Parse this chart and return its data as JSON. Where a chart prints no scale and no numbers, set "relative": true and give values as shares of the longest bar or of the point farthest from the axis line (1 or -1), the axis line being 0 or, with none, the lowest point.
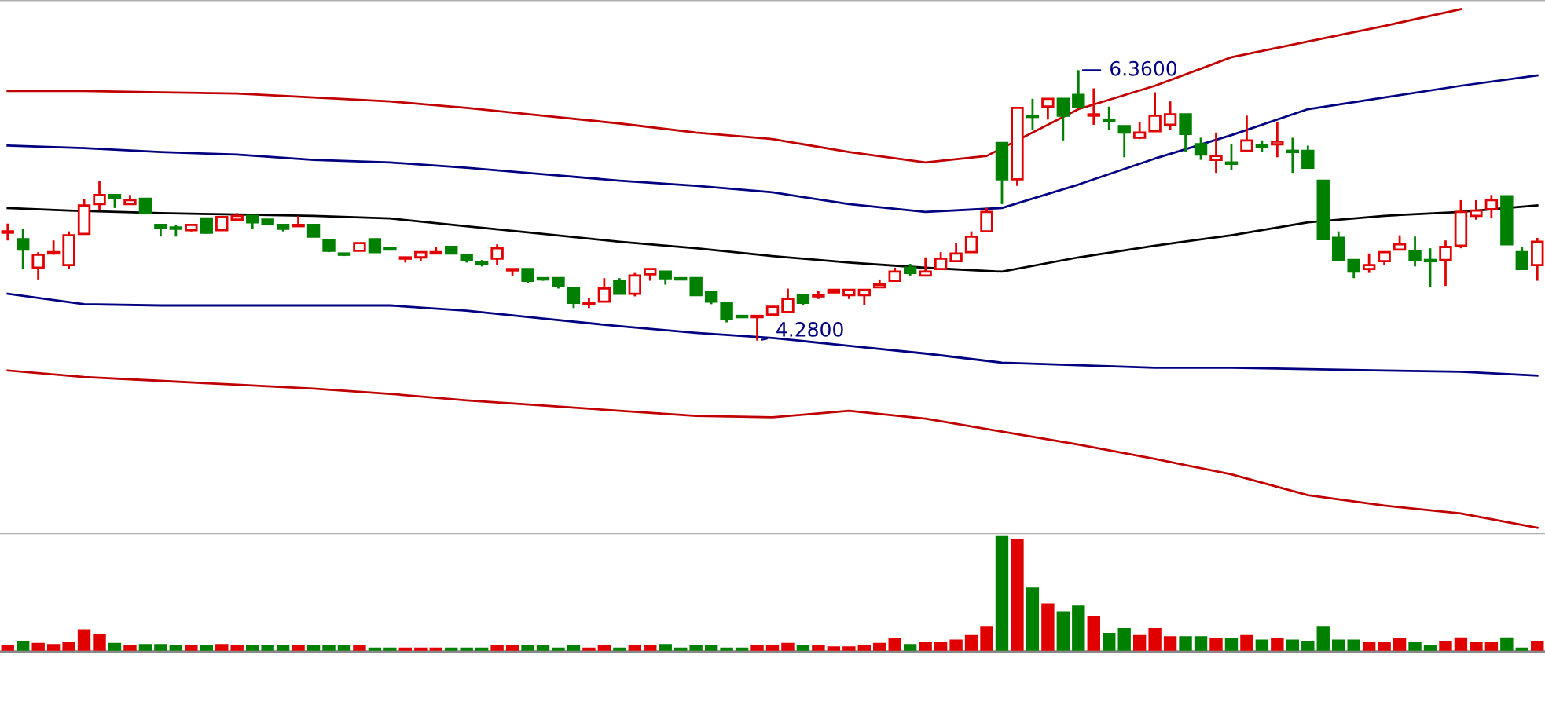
{
  "chart_data": [
    {
      "type": "candlestick",
      "categories": [
        null,
        null,
        null,
        null,
        null,
        null,
        null,
        null,
        null,
        null,
        null,
        null,
        null,
        null,
        null,
        null,
        null,
        null,
        null,
        null,
        null,
        null,
        null,
        null,
        null,
        null,
        null,
        null,
        null,
        null,
        null,
        null,
        null,
        null,
        null,
        null,
        null,
        null,
        null,
        null,
        null,
        null,
        null,
        null,
        null,
        null,
        null,
        null,
        null,
        null,
        null,
        null,
        null,
        null,
        null,
        null,
        null,
        null,
        null,
        null,
        null,
        null,
        null,
        null,
        null,
        null,
        null,
        null,
        null,
        null,
        null,
        null,
        null,
        null,
        null,
        null,
        null,
        null,
        null,
        null,
        null,
        null,
        null,
        null,
        null,
        null,
        null,
        null,
        null,
        null,
        null,
        null,
        null,
        null,
        null,
        null,
        null,
        null,
        null,
        null,
        null
      ],
      "ohlc": [
        [
          5.11,
          5.18,
          5.05,
          5.12
        ],
        [
          5.06,
          5.14,
          4.83,
          4.98
        ],
        [
          4.84,
          4.96,
          4.75,
          4.94
        ],
        [
          4.95,
          5.05,
          4.94,
          4.96
        ],
        [
          4.86,
          5.12,
          4.83,
          5.09
        ],
        [
          5.1,
          5.37,
          5.1,
          5.32
        ],
        [
          5.33,
          5.51,
          5.28,
          5.4
        ],
        [
          5.4,
          5.4,
          5.3,
          5.38
        ],
        [
          5.33,
          5.4,
          5.33,
          5.36
        ],
        [
          5.37,
          5.37,
          5.25,
          5.26
        ],
        [
          5.17,
          5.17,
          5.08,
          5.15
        ],
        [
          5.15,
          5.17,
          5.08,
          5.14
        ],
        [
          5.13,
          5.17,
          5.12,
          5.17
        ],
        [
          5.22,
          5.22,
          5.1,
          5.11
        ],
        [
          5.13,
          5.23,
          5.13,
          5.23
        ],
        [
          5.21,
          5.26,
          5.21,
          5.24
        ],
        [
          5.24,
          5.24,
          5.14,
          5.19
        ],
        [
          5.21,
          5.21,
          5.17,
          5.18
        ],
        [
          5.17,
          5.17,
          5.12,
          5.14
        ],
        [
          5.16,
          5.24,
          5.16,
          5.17
        ],
        [
          5.17,
          5.17,
          5.08,
          5.08
        ],
        [
          5.05,
          5.05,
          4.96,
          4.97
        ],
        [
          4.95,
          4.95,
          4.93,
          4.94
        ],
        [
          4.97,
          5.03,
          4.97,
          5.03
        ],
        [
          5.06,
          5.06,
          4.96,
          4.96
        ],
        [
          4.99,
          5.0,
          4.98,
          4.98
        ],
        [
          4.91,
          4.92,
          4.88,
          4.92
        ],
        [
          4.92,
          4.96,
          4.89,
          4.96
        ],
        [
          4.95,
          5.0,
          4.95,
          4.96
        ],
        [
          5.0,
          5.0,
          4.95,
          4.95
        ],
        [
          4.94,
          4.94,
          4.88,
          4.9
        ],
        [
          4.88,
          4.9,
          4.85,
          4.87
        ],
        [
          4.91,
          5.02,
          4.86,
          4.99
        ],
        [
          4.82,
          4.83,
          4.78,
          4.83
        ],
        [
          4.83,
          4.83,
          4.72,
          4.74
        ],
        [
          4.76,
          4.76,
          4.74,
          4.75
        ],
        [
          4.76,
          4.76,
          4.68,
          4.7
        ],
        [
          4.68,
          4.68,
          4.53,
          4.57
        ],
        [
          4.56,
          4.61,
          4.53,
          4.57
        ],
        [
          4.58,
          4.76,
          4.58,
          4.68
        ],
        [
          4.74,
          4.76,
          4.64,
          4.64
        ],
        [
          4.64,
          4.8,
          4.62,
          4.78
        ],
        [
          4.79,
          4.83,
          4.74,
          4.83
        ],
        [
          4.81,
          4.81,
          4.71,
          4.76
        ],
        [
          4.76,
          4.76,
          4.75,
          4.75
        ],
        [
          4.76,
          4.76,
          4.63,
          4.63
        ],
        [
          4.65,
          4.65,
          4.56,
          4.58
        ],
        [
          4.57,
          4.57,
          4.42,
          4.45
        ],
        [
          4.47,
          4.47,
          4.46,
          4.46
        ],
        [
          4.46,
          4.47,
          4.28,
          4.47
        ],
        [
          4.48,
          4.54,
          4.48,
          4.54
        ],
        [
          4.5,
          4.68,
          4.5,
          4.6
        ],
        [
          4.63,
          4.63,
          4.55,
          4.57
        ],
        [
          4.62,
          4.66,
          4.6,
          4.63
        ],
        [
          4.65,
          4.67,
          4.65,
          4.67
        ],
        [
          4.63,
          4.67,
          4.6,
          4.67
        ],
        [
          4.63,
          4.67,
          4.55,
          4.67
        ],
        [
          4.69,
          4.75,
          4.69,
          4.71
        ],
        [
          4.74,
          4.84,
          4.74,
          4.81
        ],
        [
          4.84,
          4.87,
          4.78,
          4.8
        ],
        [
          4.78,
          4.92,
          4.78,
          4.81
        ],
        [
          4.83,
          4.96,
          4.83,
          4.91
        ],
        [
          4.89,
          5.03,
          4.89,
          4.95
        ],
        [
          4.96,
          5.12,
          4.96,
          5.08
        ],
        [
          5.12,
          5.3,
          5.12,
          5.27
        ],
        [
          5.8,
          5.8,
          5.33,
          5.52
        ],
        [
          5.52,
          6.07,
          5.47,
          6.07
        ],
        [
          6.01,
          6.14,
          5.9,
          6.0
        ],
        [
          6.08,
          6.14,
          5.98,
          6.14
        ],
        [
          6.14,
          6.14,
          5.82,
          6.01
        ],
        [
          6.17,
          6.36,
          6.08,
          6.08
        ],
        [
          6.01,
          6.22,
          5.94,
          6.02
        ],
        [
          5.98,
          6.08,
          5.9,
          5.97
        ],
        [
          5.93,
          5.93,
          5.69,
          5.88
        ],
        [
          5.84,
          5.96,
          5.83,
          5.88
        ],
        [
          5.89,
          6.19,
          5.89,
          6.01
        ],
        [
          5.94,
          6.12,
          5.9,
          6.02
        ],
        [
          6.02,
          6.02,
          5.73,
          5.87
        ],
        [
          5.79,
          5.84,
          5.67,
          5.71
        ],
        [
          5.67,
          5.88,
          5.57,
          5.7
        ],
        [
          5.65,
          5.79,
          5.59,
          5.64
        ],
        [
          5.74,
          6.01,
          5.74,
          5.82
        ],
        [
          5.78,
          5.82,
          5.73,
          5.77
        ],
        [
          5.79,
          5.96,
          5.69,
          5.81
        ],
        [
          5.74,
          5.84,
          5.57,
          5.73
        ],
        [
          5.74,
          5.78,
          5.61,
          5.61
        ],
        [
          5.51,
          5.51,
          5.06,
          5.06
        ],
        [
          5.07,
          5.12,
          4.9,
          4.9
        ],
        [
          4.9,
          4.9,
          4.76,
          4.81
        ],
        [
          4.83,
          4.95,
          4.8,
          4.86
        ],
        [
          4.89,
          4.96,
          4.86,
          4.96
        ],
        [
          4.98,
          5.09,
          4.98,
          5.02
        ],
        [
          4.97,
          5.08,
          4.85,
          4.9
        ],
        [
          4.9,
          4.99,
          4.69,
          4.89
        ],
        [
          4.9,
          5.05,
          4.7,
          5.0
        ],
        [
          5.01,
          5.36,
          4.99,
          5.27
        ],
        [
          5.24,
          5.36,
          5.21,
          5.28
        ],
        [
          5.29,
          5.4,
          5.22,
          5.36
        ],
        [
          5.39,
          5.39,
          5.02,
          5.02
        ],
        [
          4.96,
          5.0,
          4.83,
          4.83
        ],
        [
          4.86,
          5.07,
          4.74,
          5.04
        ]
      ],
      "colors": [
        "#e00000",
        "#008000",
        "#e00000",
        "#e00000",
        "#e00000",
        "#e00000",
        "#e00000",
        "#008000",
        "#e00000",
        "#008000",
        "#008000",
        "#008000",
        "#e00000",
        "#008000",
        "#e00000",
        "#e00000",
        "#008000",
        "#008000",
        "#008000",
        "#e00000",
        "#008000",
        "#008000",
        "#008000",
        "#e00000",
        "#008000",
        "#008000",
        "#e00000",
        "#e00000",
        "#e00000",
        "#008000",
        "#008000",
        "#008000",
        "#e00000",
        "#e00000",
        "#008000",
        "#008000",
        "#008000",
        "#008000",
        "#e00000",
        "#e00000",
        "#008000",
        "#e00000",
        "#e00000",
        "#008000",
        "#008000",
        "#008000",
        "#008000",
        "#008000",
        "#008000",
        "#e00000",
        "#e00000",
        "#e00000",
        "#008000",
        "#e00000",
        "#e00000",
        "#e00000",
        "#e00000",
        "#e00000",
        "#e00000",
        "#008000",
        "#e00000",
        "#e00000",
        "#e00000",
        "#e00000",
        "#e00000",
        "#008000",
        "#e00000",
        "#008000",
        "#e00000",
        "#008000",
        "#008000",
        "#e00000",
        "#008000",
        "#008000",
        "#e00000",
        "#e00000",
        "#e00000",
        "#008000",
        "#008000",
        "#e00000",
        "#008000",
        "#e00000",
        "#008000",
        "#e00000",
        "#008000",
        "#008000",
        "#008000",
        "#008000",
        "#008000",
        "#e00000",
        "#e00000",
        "#e00000",
        "#008000",
        "#008000",
        "#e00000",
        "#e00000",
        "#e00000",
        "#e00000",
        "#008000",
        "#008000",
        "#e00000"
      ],
      "series": [
        {
          "type": "line",
          "color": "#000000",
          "values": [
            5.3,
            null,
            null,
            null,
            5.28,
            null,
            null,
            null,
            null,
            null,
            5.26,
            null,
            null,
            null,
            null,
            5.25,
            null,
            null,
            null,
            null,
            5.24,
            null,
            null,
            null,
            null,
            5.22,
            null,
            null,
            null,
            null,
            5.16,
            null,
            null,
            null,
            null,
            5.1,
            null,
            null,
            null,
            null,
            5.04,
            null,
            null,
            null,
            null,
            4.99,
            null,
            null,
            null,
            null,
            4.93,
            null,
            null,
            null,
            null,
            4.88,
            null,
            null,
            null,
            null,
            4.84,
            null,
            null,
            null,
            null,
            4.81,
            null,
            null,
            null,
            null,
            4.92,
            null,
            null,
            null,
            null,
            5.01,
            null,
            null,
            null,
            null,
            5.09,
            null,
            null,
            null,
            null,
            5.19,
            null,
            null,
            null,
            null,
            5.24,
            null,
            null,
            null,
            null,
            5.27,
            null,
            null,
            null,
            null,
            5.32
          ]
        },
        {
          "type": "line",
          "color": "#000080",
          "values": [
            5.78,
            null,
            null,
            null,
            null,
            5.76,
            null,
            null,
            null,
            null,
            5.73,
            null,
            null,
            null,
            null,
            5.71,
            null,
            null,
            null,
            null,
            5.67,
            null,
            null,
            null,
            null,
            5.65,
            null,
            null,
            null,
            null,
            5.61,
            null,
            null,
            null,
            null,
            5.56,
            null,
            null,
            null,
            null,
            5.51,
            null,
            null,
            null,
            null,
            5.47,
            null,
            null,
            null,
            null,
            5.42,
            null,
            null,
            null,
            null,
            5.33,
            null,
            null,
            null,
            null,
            5.27,
            null,
            null,
            null,
            null,
            5.3,
            null,
            null,
            null,
            null,
            5.48,
            null,
            null,
            null,
            null,
            5.68,
            null,
            null,
            null,
            null,
            5.86,
            null,
            null,
            null,
            null,
            6.06,
            null,
            null,
            null,
            null,
            6.15,
            null,
            null,
            null,
            null,
            6.24,
            null,
            null,
            null,
            null,
            6.32
          ]
        },
        {
          "type": "line",
          "color": "#000080",
          "values": [
            4.64,
            null,
            null,
            null,
            null,
            4.56,
            null,
            null,
            null,
            null,
            4.55,
            null,
            null,
            null,
            null,
            4.55,
            null,
            null,
            null,
            null,
            4.55,
            null,
            null,
            null,
            null,
            4.55,
            null,
            null,
            null,
            null,
            4.51,
            null,
            null,
            null,
            null,
            4.45,
            null,
            null,
            null,
            null,
            4.39,
            null,
            null,
            null,
            null,
            4.34,
            null,
            null,
            null,
            null,
            4.3,
            null,
            null,
            null,
            null,
            4.24,
            null,
            null,
            null,
            null,
            4.18,
            null,
            null,
            null,
            null,
            4.11,
            null,
            null,
            null,
            null,
            4.09,
            null,
            null,
            null,
            null,
            4.07,
            null,
            null,
            null,
            null,
            4.07,
            null,
            null,
            null,
            null,
            4.06,
            null,
            null,
            null,
            null,
            4.05,
            null,
            null,
            null,
            null,
            4.04,
            null,
            null,
            null,
            null,
            4.01
          ]
        },
        {
          "type": "line",
          "color": "#c00000",
          "values": [
            6.2,
            null,
            null,
            null,
            null,
            6.2,
            null,
            null,
            null,
            null,
            6.19,
            null,
            null,
            null,
            null,
            6.18,
            null,
            null,
            null,
            null,
            6.15,
            null,
            null,
            null,
            null,
            6.12,
            null,
            null,
            null,
            null,
            6.07,
            null,
            null,
            null,
            null,
            6.01,
            null,
            null,
            null,
            null,
            5.95,
            null,
            null,
            null,
            null,
            5.88,
            null,
            null,
            null,
            null,
            5.83,
            null,
            null,
            null,
            null,
            5.73,
            null,
            null,
            null,
            null,
            5.65,
            null,
            null,
            null,
            5.7,
            null,
            null,
            null,
            null,
            null,
            6.06,
            null,
            null,
            null,
            null,
            6.24,
            null,
            null,
            null,
            null,
            6.46,
            null,
            null,
            null,
            null,
            6.58,
            null,
            null,
            null,
            null,
            6.7,
            null,
            null,
            null,
            null,
            6.83,
            null,
            null,
            null,
            null,
            null
          ]
        },
        {
          "type": "line",
          "color": "#c00000",
          "values": [
            4.05,
            null,
            null,
            null,
            null,
            4.0,
            null,
            null,
            null,
            null,
            3.97,
            null,
            null,
            null,
            null,
            3.94,
            null,
            null,
            null,
            null,
            3.91,
            null,
            null,
            null,
            null,
            3.87,
            null,
            null,
            null,
            null,
            3.82,
            null,
            null,
            null,
            null,
            3.78,
            null,
            null,
            null,
            null,
            3.74,
            null,
            null,
            null,
            null,
            3.7,
            null,
            null,
            null,
            null,
            3.69,
            null,
            null,
            null,
            null,
            3.74,
            null,
            null,
            null,
            null,
            3.68,
            null,
            null,
            null,
            null,
            3.58,
            null,
            null,
            null,
            null,
            3.48,
            null,
            null,
            null,
            null,
            3.37,
            null,
            null,
            null,
            null,
            3.25,
            null,
            null,
            null,
            null,
            3.09,
            null,
            null,
            null,
            null,
            3.01,
            null,
            null,
            null,
            null,
            2.95,
            null,
            null,
            null,
            null,
            2.84
          ]
        }
      ],
      "annotations": [
        "6.3600",
        "4.2800"
      ],
      "ylim": [
        2.79,
        6.9
      ],
      "tick_labels": false
    },
    {
      "type": "bar",
      "relative": true,
      "categories": [
        null,
        null,
        null,
        null,
        null,
        null,
        null,
        null,
        null,
        null,
        null,
        null,
        null,
        null,
        null,
        null,
        null,
        null,
        null,
        null,
        null,
        null,
        null,
        null,
        null,
        null,
        null,
        null,
        null,
        null,
        null,
        null,
        null,
        null,
        null,
        null,
        null,
        null,
        null,
        null,
        null,
        null,
        null,
        null,
        null,
        null,
        null,
        null,
        null,
        null,
        null,
        null,
        null,
        null,
        null,
        null,
        null,
        null,
        null,
        null,
        null,
        null,
        null,
        null,
        null,
        null,
        null,
        null,
        null,
        null,
        null,
        null,
        null,
        null,
        null,
        null,
        null,
        null,
        null,
        null,
        null,
        null,
        null,
        null,
        null,
        null,
        null,
        null,
        null,
        null,
        null,
        null,
        null,
        null,
        null,
        null,
        null,
        null,
        null,
        null,
        null
      ],
      "values": [
        0.03,
        0.07,
        0.05,
        0.04,
        0.06,
        0.17,
        0.13,
        0.05,
        0.03,
        0.04,
        0.04,
        0.03,
        0.03,
        0.03,
        0.04,
        0.03,
        0.03,
        0.03,
        0.03,
        0.03,
        0.03,
        0.03,
        0.03,
        0.03,
        0.01,
        0.01,
        0.01,
        0.01,
        0.01,
        0.01,
        0.01,
        0.01,
        0.03,
        0.03,
        0.03,
        0.03,
        0.01,
        0.03,
        0.01,
        0.03,
        0.01,
        0.03,
        0.03,
        0.04,
        0.01,
        0.03,
        0.03,
        0.01,
        0.01,
        0.03,
        0.03,
        0.05,
        0.03,
        0.03,
        0.02,
        0.02,
        0.03,
        0.05,
        0.09,
        0.04,
        0.06,
        0.06,
        0.08,
        0.12,
        0.2,
        1,
        0.97,
        0.54,
        0.4,
        0.33,
        0.38,
        0.29,
        0.14,
        0.18,
        0.12,
        0.18,
        0.11,
        0.11,
        0.11,
        0.09,
        0.09,
        0.12,
        0.08,
        0.09,
        0.08,
        0.07,
        0.2,
        0.08,
        0.08,
        0.06,
        0.06,
        0.09,
        0.06,
        0.03,
        0.07,
        0.1,
        0.06,
        0.06,
        0.1,
        0.01,
        0.07
      ],
      "colors": [
        "#e00000",
        "#008000",
        "#e00000",
        "#e00000",
        "#e00000",
        "#e00000",
        "#e00000",
        "#008000",
        "#e00000",
        "#008000",
        "#008000",
        "#008000",
        "#e00000",
        "#008000",
        "#e00000",
        "#e00000",
        "#008000",
        "#008000",
        "#008000",
        "#e00000",
        "#008000",
        "#008000",
        "#008000",
        "#e00000",
        "#008000",
        "#008000",
        "#e00000",
        "#e00000",
        "#e00000",
        "#008000",
        "#008000",
        "#008000",
        "#e00000",
        "#e00000",
        "#008000",
        "#008000",
        "#008000",
        "#008000",
        "#e00000",
        "#e00000",
        "#008000",
        "#e00000",
        "#e00000",
        "#008000",
        "#008000",
        "#008000",
        "#008000",
        "#008000",
        "#008000",
        "#e00000",
        "#e00000",
        "#e00000",
        "#008000",
        "#e00000",
        "#e00000",
        "#e00000",
        "#e00000",
        "#e00000",
        "#e00000",
        "#008000",
        "#e00000",
        "#e00000",
        "#e00000",
        "#e00000",
        "#e00000",
        "#008000",
        "#e00000",
        "#008000",
        "#e00000",
        "#008000",
        "#008000",
        "#e00000",
        "#008000",
        "#008000",
        "#e00000",
        "#e00000",
        "#e00000",
        "#008000",
        "#008000",
        "#e00000",
        "#008000",
        "#e00000",
        "#008000",
        "#e00000",
        "#008000",
        "#008000",
        "#008000",
        "#008000",
        "#008000",
        "#e00000",
        "#e00000",
        "#e00000",
        "#008000",
        "#008000",
        "#e00000",
        "#e00000",
        "#e00000",
        "#e00000",
        "#008000",
        "#008000",
        "#e00000"
      ],
      "tick_labels": false
    }
  ]
}
